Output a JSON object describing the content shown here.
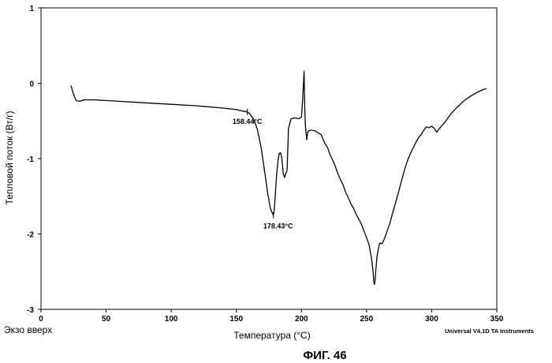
{
  "chart_data": {
    "type": "line",
    "xlabel": "Температура (°C)",
    "ylabel": "Тепловой поток (Вт/г)",
    "xlim": [
      0,
      350
    ],
    "ylim": [
      -3,
      1
    ],
    "x_ticks": [
      0,
      50,
      100,
      150,
      200,
      250,
      300,
      350
    ],
    "y_ticks": [
      1,
      0,
      -1,
      -2,
      -3
    ],
    "grid": false,
    "annotations": [
      {
        "text": "158.44°C",
        "x": 158.44,
        "y": -0.38
      },
      {
        "text": "178.43°C",
        "x": 178.43,
        "y": -1.75
      }
    ],
    "series": [
      {
        "x": [
          23,
          25,
          27,
          30,
          33,
          40,
          60,
          80,
          100,
          120,
          140,
          150,
          155,
          158.44,
          160,
          163,
          166,
          169,
          172,
          174,
          176,
          177,
          178.43,
          179,
          180,
          181,
          182,
          183,
          184,
          185,
          186,
          187,
          188,
          189,
          190,
          192,
          195,
          198,
          200,
          201,
          202,
          202.5,
          203,
          204,
          205,
          207,
          210,
          215,
          218,
          220,
          222,
          224,
          226,
          228,
          230,
          232,
          234,
          236,
          238,
          240,
          242,
          244,
          246,
          248,
          250,
          252,
          254,
          255,
          255.5,
          256,
          256.5,
          257,
          258,
          259,
          260,
          262,
          264,
          266,
          268,
          270,
          272,
          274,
          276,
          278,
          280,
          282,
          284,
          286,
          288,
          290,
          292,
          294,
          296,
          298,
          300,
          302,
          303,
          304,
          305,
          310,
          315,
          320,
          325,
          330,
          335,
          340,
          342
        ],
        "y": [
          -0.03,
          -0.15,
          -0.23,
          -0.24,
          -0.22,
          -0.22,
          -0.24,
          -0.26,
          -0.28,
          -0.3,
          -0.33,
          -0.35,
          -0.37,
          -0.38,
          -0.4,
          -0.47,
          -0.6,
          -0.85,
          -1.2,
          -1.45,
          -1.65,
          -1.7,
          -1.75,
          -1.7,
          -1.45,
          -1.2,
          -1.02,
          -0.93,
          -0.92,
          -1.0,
          -1.2,
          -1.25,
          -1.2,
          -1.15,
          -0.6,
          -0.47,
          -0.46,
          -0.47,
          -0.45,
          -0.2,
          0.16,
          -0.3,
          -0.55,
          -0.75,
          -0.64,
          -0.62,
          -0.63,
          -0.68,
          -0.8,
          -0.85,
          -0.95,
          -1.02,
          -1.1,
          -1.2,
          -1.28,
          -1.35,
          -1.45,
          -1.52,
          -1.6,
          -1.66,
          -1.74,
          -1.8,
          -1.87,
          -1.96,
          -2.05,
          -2.15,
          -2.35,
          -2.5,
          -2.62,
          -2.67,
          -2.62,
          -2.5,
          -2.3,
          -2.2,
          -2.12,
          -2.13,
          -2.05,
          -1.95,
          -1.85,
          -1.72,
          -1.6,
          -1.48,
          -1.35,
          -1.22,
          -1.1,
          -1.0,
          -0.92,
          -0.85,
          -0.78,
          -0.72,
          -0.68,
          -0.62,
          -0.58,
          -0.59,
          -0.57,
          -0.6,
          -0.63,
          -0.65,
          -0.62,
          -0.52,
          -0.4,
          -0.31,
          -0.23,
          -0.17,
          -0.12,
          -0.08,
          -0.07
        ]
      }
    ]
  },
  "corner_left": "Экзо вверх",
  "credit": "Universal V4.1D TA Instruments",
  "figure_caption": "ФИГ. 46"
}
